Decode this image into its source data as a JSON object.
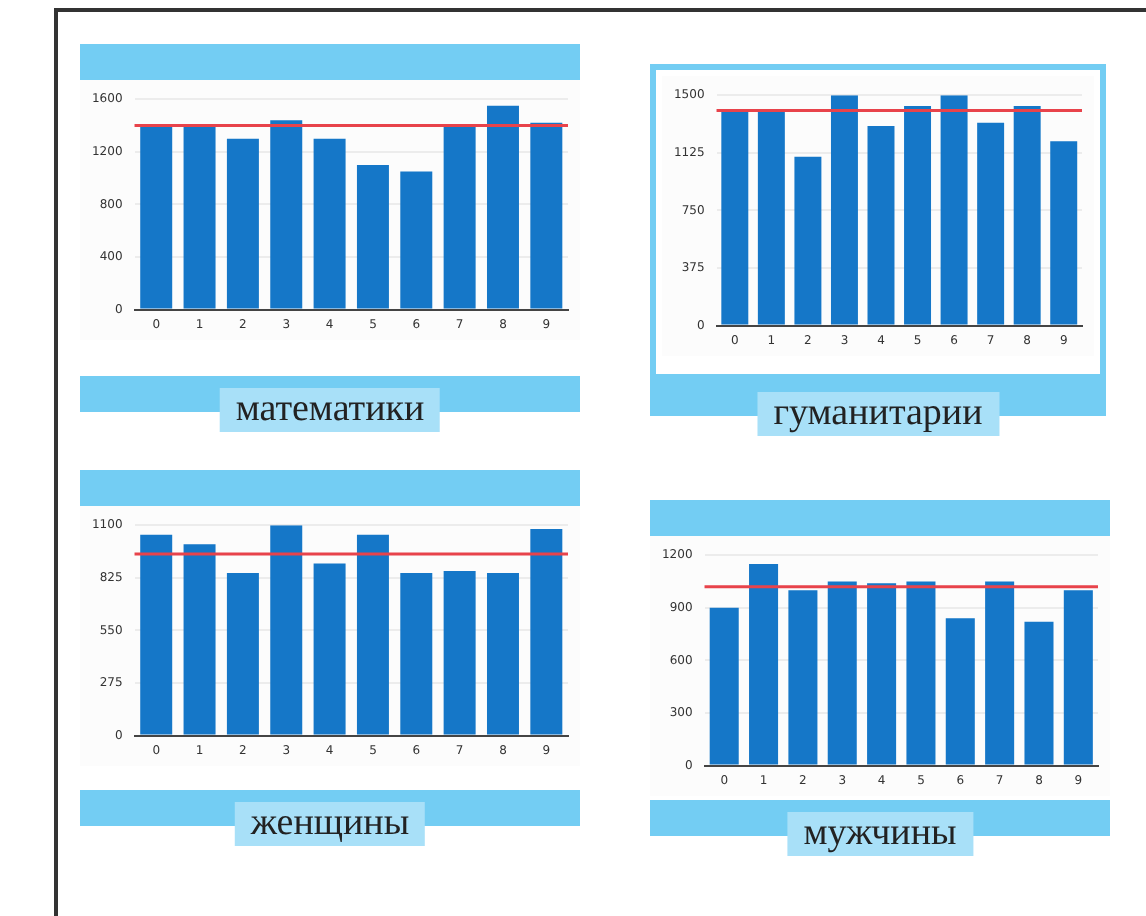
{
  "chart_data": [
    {
      "type": "bar",
      "title": "математики",
      "categories": [
        "0",
        "1",
        "2",
        "3",
        "4",
        "5",
        "6",
        "7",
        "8",
        "9"
      ],
      "values": [
        1400,
        1400,
        1300,
        1440,
        1300,
        1100,
        1050,
        1400,
        1550,
        1420
      ],
      "color": "#1577c8",
      "ylim": [
        0,
        1600
      ],
      "yticks": [
        0,
        400,
        800,
        1200,
        1600
      ],
      "grid": "y",
      "ref_lines": [
        {
          "axis": "y",
          "value": 1400,
          "color": "#e8434b"
        }
      ]
    },
    {
      "type": "bar",
      "title": "гуманитарии",
      "categories": [
        "0",
        "1",
        "2",
        "3",
        "4",
        "5",
        "6",
        "7",
        "8",
        "9"
      ],
      "values": [
        1400,
        1400,
        1100,
        1500,
        1300,
        1430,
        1500,
        1320,
        1430,
        1200
      ],
      "color": "#1577c8",
      "ylim": [
        0,
        1500
      ],
      "yticks": [
        0,
        375,
        750,
        1125,
        1500
      ],
      "grid": "y",
      "ref_lines": [
        {
          "axis": "y",
          "value": 1400,
          "color": "#e8434b"
        }
      ]
    },
    {
      "type": "bar",
      "title": "женщины",
      "categories": [
        "0",
        "1",
        "2",
        "3",
        "4",
        "5",
        "6",
        "7",
        "8",
        "9"
      ],
      "values": [
        1050,
        1000,
        850,
        1100,
        900,
        1050,
        850,
        860,
        850,
        1080
      ],
      "color": "#1577c8",
      "ylim": [
        0,
        1100
      ],
      "yticks": [
        0,
        275,
        550,
        825,
        1100
      ],
      "grid": "y",
      "ref_lines": [
        {
          "axis": "y",
          "value": 950,
          "color": "#e8434b"
        }
      ]
    },
    {
      "type": "bar",
      "title": "мужчины",
      "categories": [
        "0",
        "1",
        "2",
        "3",
        "4",
        "5",
        "6",
        "7",
        "8",
        "9"
      ],
      "values": [
        900,
        1150,
        1000,
        1050,
        1040,
        1050,
        840,
        1050,
        820,
        1000
      ],
      "color": "#1577c8",
      "ylim": [
        0,
        1200
      ],
      "yticks": [
        0,
        300,
        600,
        900,
        1200
      ],
      "grid": "y",
      "ref_lines": [
        {
          "axis": "y",
          "value": 1020,
          "color": "#e8434b"
        }
      ]
    }
  ]
}
